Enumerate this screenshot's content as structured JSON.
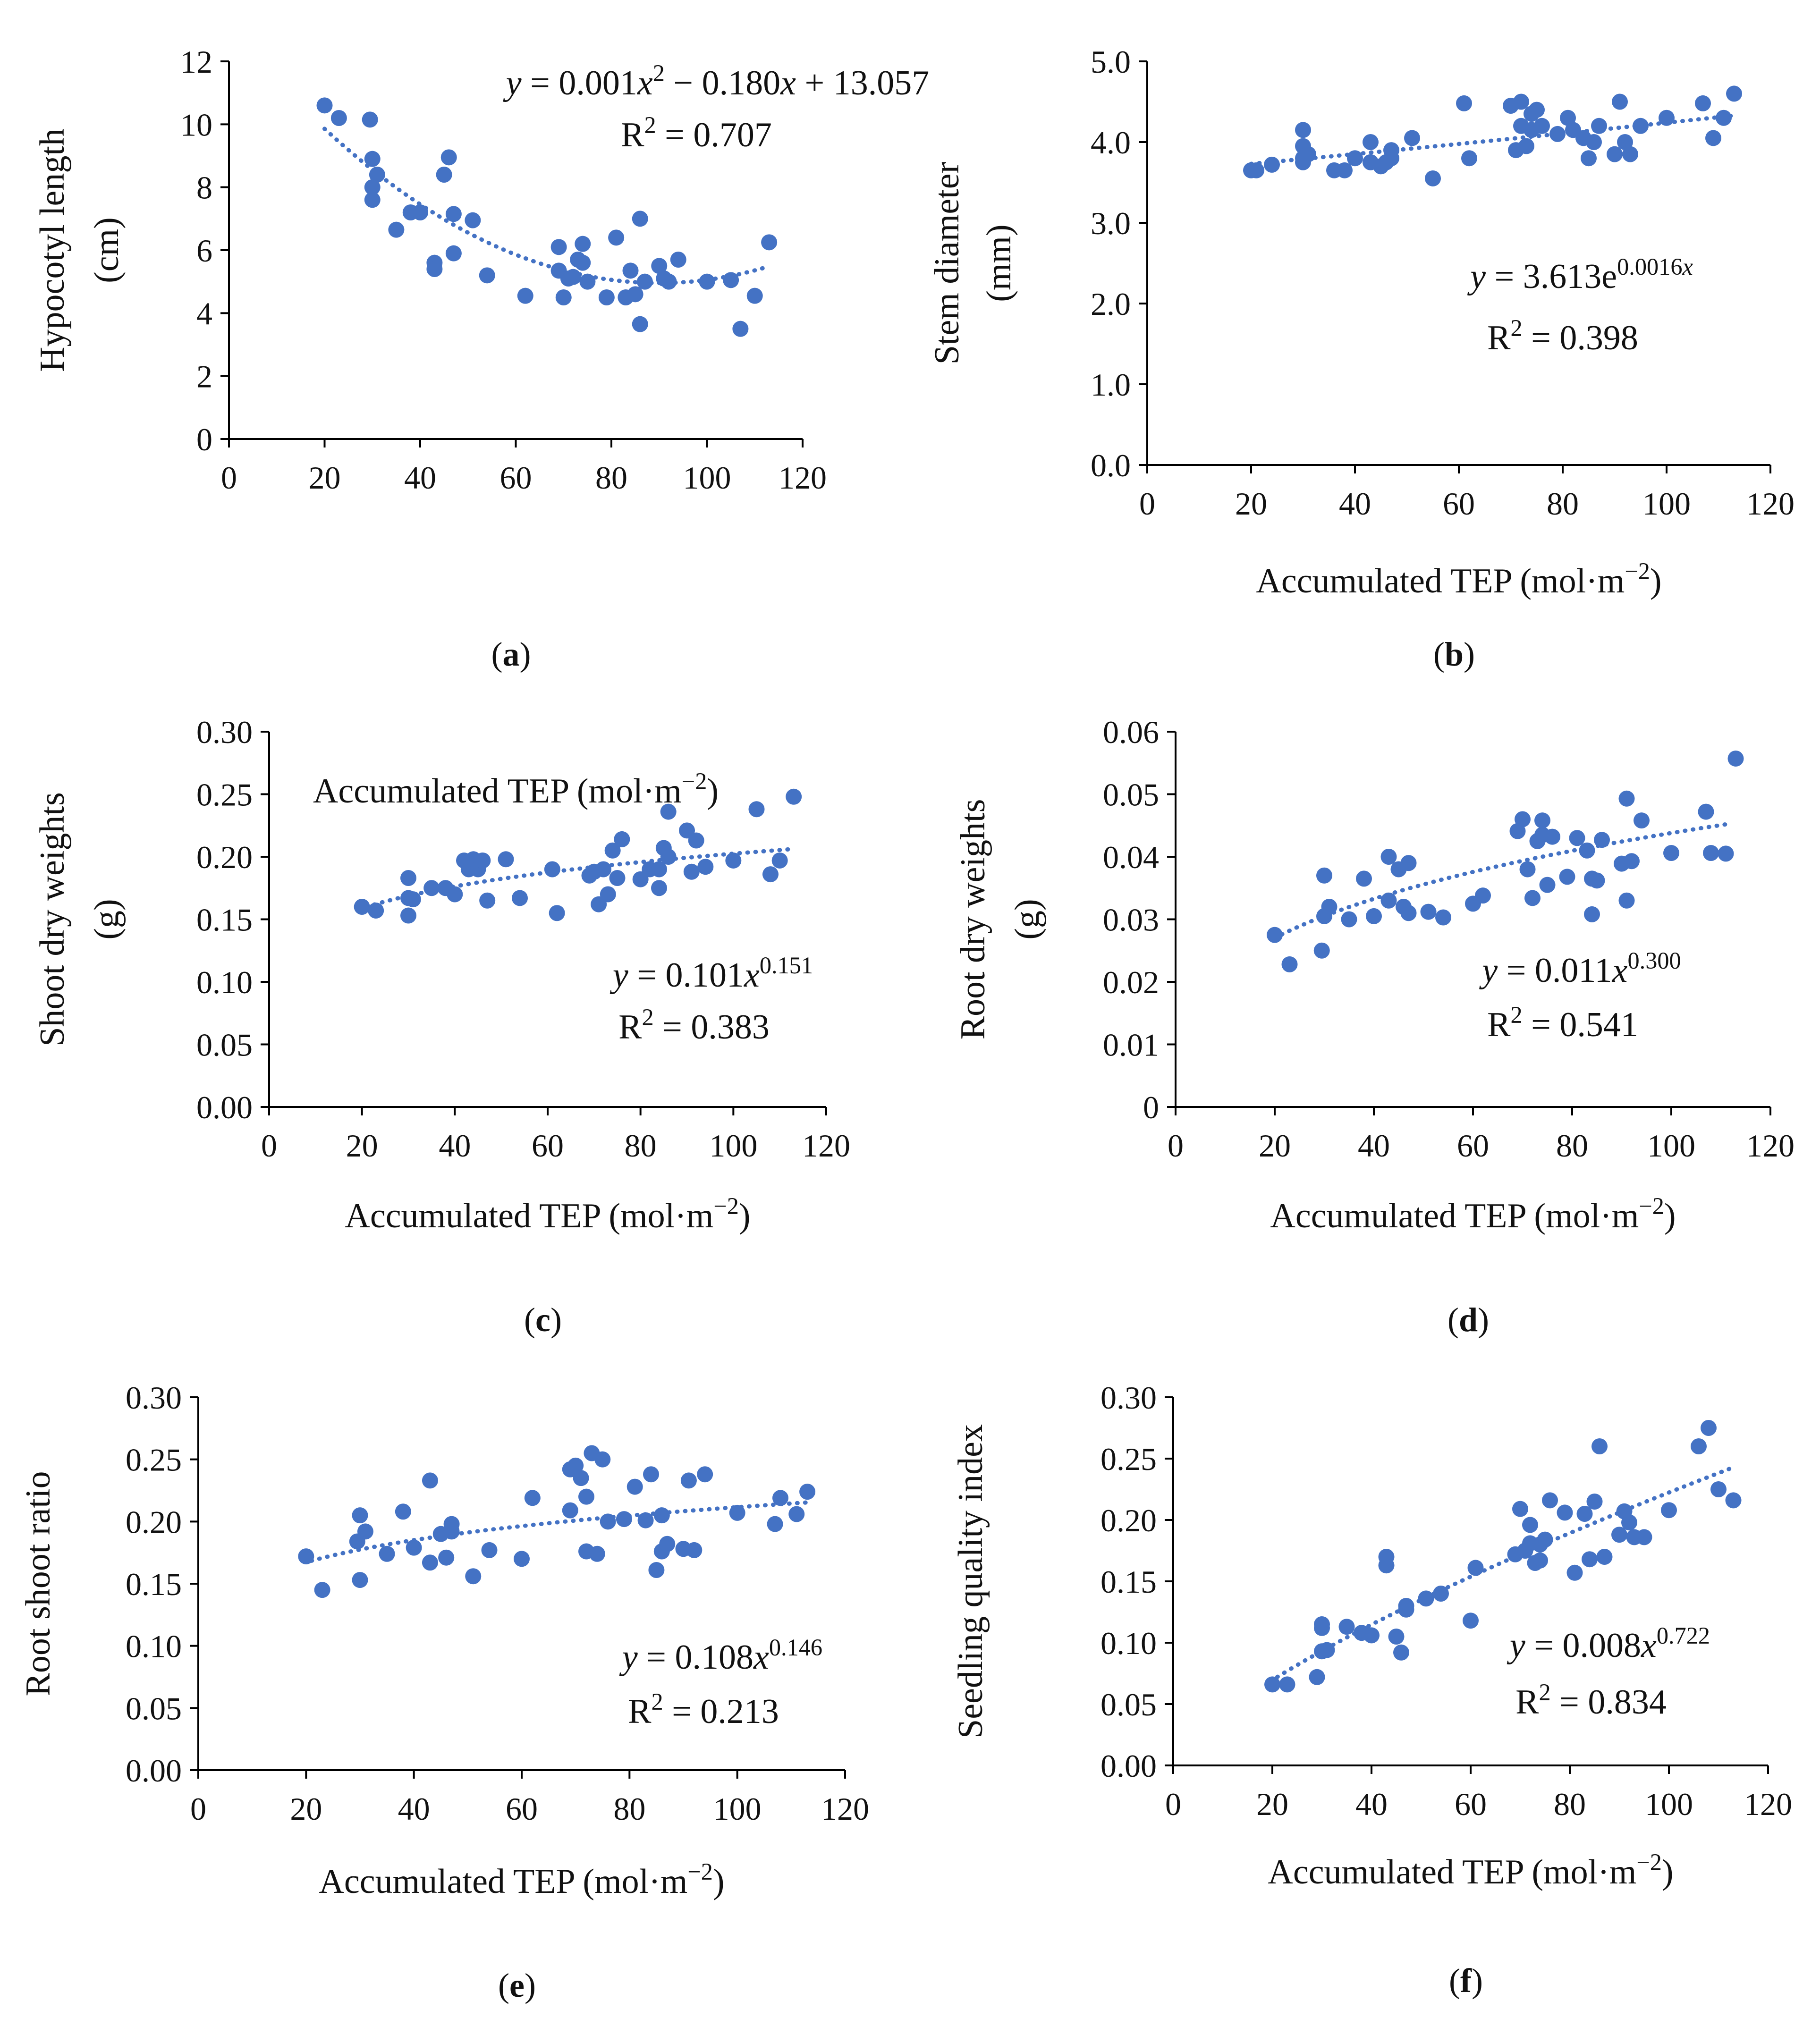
{
  "figure": {
    "colors": {
      "point": "#4472C4",
      "trend": "#4472C4",
      "axis": "#000000"
    }
  },
  "chart_data": [
    {
      "id": "a",
      "type": "scatter",
      "panel_label": "a",
      "title": "",
      "xlabel": "Accumulated TEP (mol·m",
      "xlabel_sup": "−2",
      "xlabel_end": ")",
      "ylabel_line1": "Hypocotyl length",
      "ylabel_line2": "(cm)",
      "xlim": [
        0,
        120
      ],
      "ylim": [
        0,
        12
      ],
      "xticks": [
        0,
        20,
        40,
        60,
        80,
        100,
        120
      ],
      "yticks": [
        0,
        2,
        4,
        6,
        8,
        10,
        12
      ],
      "ytick_labels": [
        "0",
        "2",
        "4",
        "6",
        "8",
        "10",
        "12"
      ],
      "equation": {
        "line1_parts": [
          "y",
          " = 0.001",
          "x",
          "2",
          " − 0.180",
          "x",
          " + 13.057"
        ],
        "r2_prefix": "R",
        "r2_sup": "2",
        "r2_value": " = 0.707"
      },
      "trend": {
        "kind": "poly2",
        "a": 0.001,
        "b": -0.18,
        "c": 13.057,
        "x_range": [
          20,
          112
        ]
      },
      "x": [
        20,
        23,
        29.5,
        30,
        30,
        30,
        31,
        35,
        38,
        40,
        43,
        43,
        45,
        46,
        47,
        47,
        51,
        54,
        62,
        69,
        69,
        70,
        71,
        72,
        73,
        74,
        74,
        75,
        79,
        81,
        83,
        84,
        85,
        86,
        86,
        87,
        90,
        91,
        92,
        94,
        100,
        105,
        107,
        110,
        113
      ],
      "y": [
        10.6,
        10.2,
        10.15,
        8.9,
        8.0,
        7.6,
        8.4,
        6.65,
        7.2,
        7.2,
        5.6,
        5.4,
        8.4,
        8.95,
        5.9,
        7.15,
        6.95,
        5.2,
        4.55,
        6.1,
        5.35,
        4.5,
        5.1,
        5.15,
        5.7,
        6.2,
        5.6,
        5.0,
        4.5,
        6.4,
        4.5,
        5.35,
        4.6,
        3.65,
        7.0,
        5.0,
        5.5,
        5.1,
        5.0,
        5.7,
        5.0,
        5.05,
        3.5,
        4.55,
        6.25
      ]
    },
    {
      "id": "b",
      "type": "scatter",
      "panel_label": "b",
      "title": "",
      "xlabel": "Accumulated TEP (mol·m",
      "xlabel_sup": "−2",
      "xlabel_end": ")",
      "ylabel_line1": "Stem diameter",
      "ylabel_line2": "(mm)",
      "xlim": [
        0,
        120
      ],
      "ylim": [
        0,
        5
      ],
      "xticks": [
        0,
        20,
        40,
        60,
        80,
        100,
        120
      ],
      "yticks": [
        0,
        1,
        2,
        3,
        4,
        5
      ],
      "ytick_labels": [
        "0.0",
        "1.0",
        "2.0",
        "3.0",
        "4.0",
        "5.0"
      ],
      "equation": {
        "line1_parts": [
          "y",
          " = 3.613e",
          "0.0016",
          "x"
        ],
        "r2_prefix": "R",
        "r2_sup": "2",
        "r2_value": " = 0.398"
      },
      "trend": {
        "kind": "exp",
        "a": 3.613,
        "b": 0.0016,
        "x_range": [
          20,
          113
        ]
      },
      "x": [
        20,
        21,
        24,
        30,
        30,
        30,
        30,
        31,
        36,
        38,
        40,
        43,
        43,
        45,
        46,
        47,
        47,
        51,
        55,
        61,
        62,
        70,
        71,
        72,
        72,
        73,
        74,
        74,
        75,
        76,
        79,
        81,
        82,
        84,
        85,
        86,
        87,
        90,
        91,
        92,
        93,
        95,
        100,
        107,
        109,
        111,
        113
      ],
      "y": [
        3.65,
        3.65,
        3.72,
        4.15,
        3.95,
        3.8,
        3.75,
        3.85,
        3.65,
        3.65,
        3.8,
        4.0,
        3.75,
        3.7,
        3.75,
        3.8,
        3.9,
        4.05,
        3.55,
        4.48,
        3.8,
        4.45,
        3.9,
        4.2,
        4.5,
        3.95,
        4.35,
        4.15,
        4.4,
        4.2,
        4.1,
        4.3,
        4.15,
        4.05,
        3.8,
        4.0,
        4.2,
        3.85,
        4.5,
        4.0,
        3.85,
        4.2,
        4.3,
        4.48,
        4.05,
        4.3,
        4.6
      ]
    },
    {
      "id": "c",
      "type": "scatter",
      "panel_label": "c",
      "title": "",
      "xlabel": "Accumulated TEP (mol·m",
      "xlabel_sup": "−2",
      "xlabel_end": ")",
      "ylabel_line1": "Shoot dry weights",
      "ylabel_line2": "(g)",
      "xlim": [
        0,
        120
      ],
      "ylim": [
        0,
        0.3
      ],
      "xticks": [
        0,
        20,
        40,
        60,
        80,
        100,
        120
      ],
      "yticks": [
        0,
        0.05,
        0.1,
        0.15,
        0.2,
        0.25,
        0.3
      ],
      "ytick_labels": [
        "0.00",
        "0.05",
        "0.10",
        "0.15",
        "0.20",
        "0.25",
        "0.30"
      ],
      "equation": {
        "line1_parts": [
          "y",
          " = 0.101",
          "x",
          "0.151"
        ],
        "r2_prefix": "R",
        "r2_sup": "2",
        "r2_value": " = 0.383"
      },
      "trend": {
        "kind": "power",
        "a": 0.101,
        "b": 0.151,
        "x_range": [
          21,
          113
        ]
      },
      "x": [
        20,
        23,
        30,
        30,
        30,
        31,
        35,
        38,
        40,
        42,
        43,
        44,
        45,
        46,
        47,
        51,
        54,
        61,
        62,
        69,
        70,
        71,
        72,
        73,
        74,
        75,
        76,
        80,
        82,
        84,
        84,
        85,
        86,
        86,
        90,
        91,
        92,
        94,
        100,
        105,
        108,
        110,
        113
      ],
      "y": [
        0.16,
        0.157,
        0.183,
        0.167,
        0.153,
        0.166,
        0.175,
        0.175,
        0.17,
        0.197,
        0.19,
        0.198,
        0.19,
        0.197,
        0.165,
        0.198,
        0.167,
        0.19,
        0.155,
        0.185,
        0.188,
        0.162,
        0.19,
        0.17,
        0.205,
        0.183,
        0.214,
        0.182,
        0.19,
        0.175,
        0.19,
        0.207,
        0.2,
        0.236,
        0.221,
        0.188,
        0.213,
        0.192,
        0.197,
        0.238,
        0.186,
        0.197,
        0.248
      ]
    },
    {
      "id": "d",
      "type": "scatter",
      "panel_label": "d",
      "title": "",
      "xlabel": "Accumulated TEP (mol·m",
      "xlabel_sup": "−2",
      "xlabel_end": ")",
      "ylabel_line1": "Root dry weights",
      "ylabel_line2": "(g)",
      "xlim": [
        0,
        120
      ],
      "ylim": [
        0,
        0.06
      ],
      "xticks": [
        0,
        20,
        40,
        60,
        80,
        100,
        120
      ],
      "yticks": [
        0,
        0.01,
        0.02,
        0.03,
        0.04,
        0.05,
        0.06
      ],
      "ytick_labels": [
        "0",
        "0.01",
        "0.02",
        "0.03",
        "0.04",
        "0.05",
        "0.06"
      ],
      "equation": {
        "line1_parts": [
          "y",
          " = 0.011",
          "x",
          "0.300"
        ],
        "r2_prefix": "R",
        "r2_sup": "2",
        "r2_value": " = 0.541"
      },
      "trend": {
        "kind": "power",
        "a": 0.011,
        "b": 0.3,
        "x_range": [
          20,
          112
        ]
      },
      "x": [
        20,
        23,
        29.5,
        30,
        30,
        31,
        35,
        38,
        40,
        43,
        43,
        45,
        46,
        47,
        47,
        51,
        54,
        60,
        62,
        69,
        70,
        71,
        72,
        73,
        74,
        74,
        75,
        76,
        79,
        81,
        83,
        84,
        84,
        85,
        86,
        90,
        91,
        91,
        92,
        94,
        100,
        107,
        108,
        111,
        113
      ],
      "y": [
        0.0275,
        0.0228,
        0.025,
        0.037,
        0.0305,
        0.032,
        0.03,
        0.0365,
        0.0305,
        0.04,
        0.033,
        0.038,
        0.032,
        0.031,
        0.039,
        0.0312,
        0.0303,
        0.0325,
        0.0338,
        0.0441,
        0.046,
        0.038,
        0.0334,
        0.0425,
        0.0435,
        0.0458,
        0.0355,
        0.0432,
        0.0368,
        0.043,
        0.041,
        0.0365,
        0.0308,
        0.0362,
        0.0427,
        0.0389,
        0.0493,
        0.033,
        0.0393,
        0.0458,
        0.0406,
        0.0472,
        0.0406,
        0.0405,
        0.0557
      ]
    },
    {
      "id": "e",
      "type": "scatter",
      "panel_label": "e",
      "title": "",
      "xlabel": "Accumulated TEP (mol·m",
      "xlabel_sup": "−2",
      "xlabel_end": ")",
      "ylabel_line1": "Root shoot ratio",
      "ylabel_line2": "",
      "xlim": [
        0,
        120
      ],
      "ylim": [
        0,
        0.3
      ],
      "xticks": [
        0,
        20,
        40,
        60,
        80,
        100,
        120
      ],
      "yticks": [
        0,
        0.05,
        0.1,
        0.15,
        0.2,
        0.25,
        0.3
      ],
      "ytick_labels": [
        "0.00",
        "0.05",
        "0.10",
        "0.15",
        "0.20",
        "0.25",
        "0.30"
      ],
      "equation": {
        "line1_parts": [
          "y",
          " = 0.108",
          "x",
          "0.146"
        ],
        "r2_prefix": "R",
        "r2_sup": "2",
        "r2_value": " = 0.213"
      },
      "trend": {
        "kind": "power",
        "a": 0.108,
        "b": 0.146,
        "x_range": [
          21,
          113
        ]
      },
      "x": [
        20,
        23,
        29.5,
        30,
        30,
        31,
        35,
        38,
        40,
        43,
        43,
        45,
        46,
        47,
        47,
        51,
        54,
        60,
        62,
        69,
        69,
        70,
        71,
        72,
        72,
        73,
        74,
        75,
        76,
        79,
        81,
        83,
        84,
        85,
        86,
        86,
        87,
        90,
        91,
        92,
        94,
        100,
        107,
        108,
        111,
        113
      ],
      "y": [
        0.172,
        0.145,
        0.184,
        0.205,
        0.153,
        0.192,
        0.174,
        0.208,
        0.179,
        0.233,
        0.167,
        0.19,
        0.171,
        0.198,
        0.192,
        0.156,
        0.177,
        0.17,
        0.219,
        0.242,
        0.209,
        0.245,
        0.235,
        0.176,
        0.22,
        0.255,
        0.174,
        0.25,
        0.2,
        0.202,
        0.228,
        0.201,
        0.238,
        0.161,
        0.176,
        0.205,
        0.182,
        0.178,
        0.233,
        0.177,
        0.238,
        0.207,
        0.198,
        0.219,
        0.206,
        0.224
      ]
    },
    {
      "id": "f",
      "type": "scatter",
      "panel_label": "f",
      "title": "",
      "xlabel": "Accumulated TEP (mol·m",
      "xlabel_sup": "−2",
      "xlabel_end": ")",
      "ylabel_line1": "Seedling quality index",
      "ylabel_line2": "",
      "xlim": [
        0,
        120
      ],
      "ylim": [
        0,
        0.3
      ],
      "xticks": [
        0,
        20,
        40,
        60,
        80,
        100,
        120
      ],
      "yticks": [
        0,
        0.05,
        0.1,
        0.15,
        0.2,
        0.25,
        0.3
      ],
      "ytick_labels": [
        "0.00",
        "0.05",
        "0.10",
        "0.15",
        "0.20",
        "0.25",
        "0.30"
      ],
      "equation": {
        "line1_parts": [
          "y",
          " = 0.008",
          "x",
          "0.722"
        ],
        "r2_prefix": "R",
        "r2_sup": "2",
        "r2_value": " = 0.834"
      },
      "trend": {
        "kind": "power",
        "a": 0.008,
        "b": 0.722,
        "x_range": [
          21,
          113
        ]
      },
      "x": [
        20,
        23,
        29,
        30,
        30,
        30,
        31,
        35,
        38,
        40,
        43,
        43,
        45,
        46,
        47,
        47,
        51,
        54,
        60,
        61,
        69,
        70,
        71,
        72,
        72,
        73,
        74,
        74,
        75,
        76,
        79,
        81,
        83,
        84,
        85,
        86,
        87,
        90,
        91,
        92,
        93,
        95,
        100,
        106,
        108,
        110,
        113
      ],
      "y": [
        0.066,
        0.066,
        0.072,
        0.112,
        0.115,
        0.093,
        0.094,
        0.113,
        0.108,
        0.106,
        0.17,
        0.163,
        0.105,
        0.092,
        0.127,
        0.13,
        0.136,
        0.14,
        0.118,
        0.161,
        0.172,
        0.209,
        0.175,
        0.181,
        0.196,
        0.165,
        0.167,
        0.18,
        0.184,
        0.216,
        0.206,
        0.157,
        0.205,
        0.168,
        0.215,
        0.26,
        0.17,
        0.188,
        0.207,
        0.198,
        0.186,
        0.186,
        0.208,
        0.26,
        0.275,
        0.225,
        0.216
      ]
    }
  ]
}
